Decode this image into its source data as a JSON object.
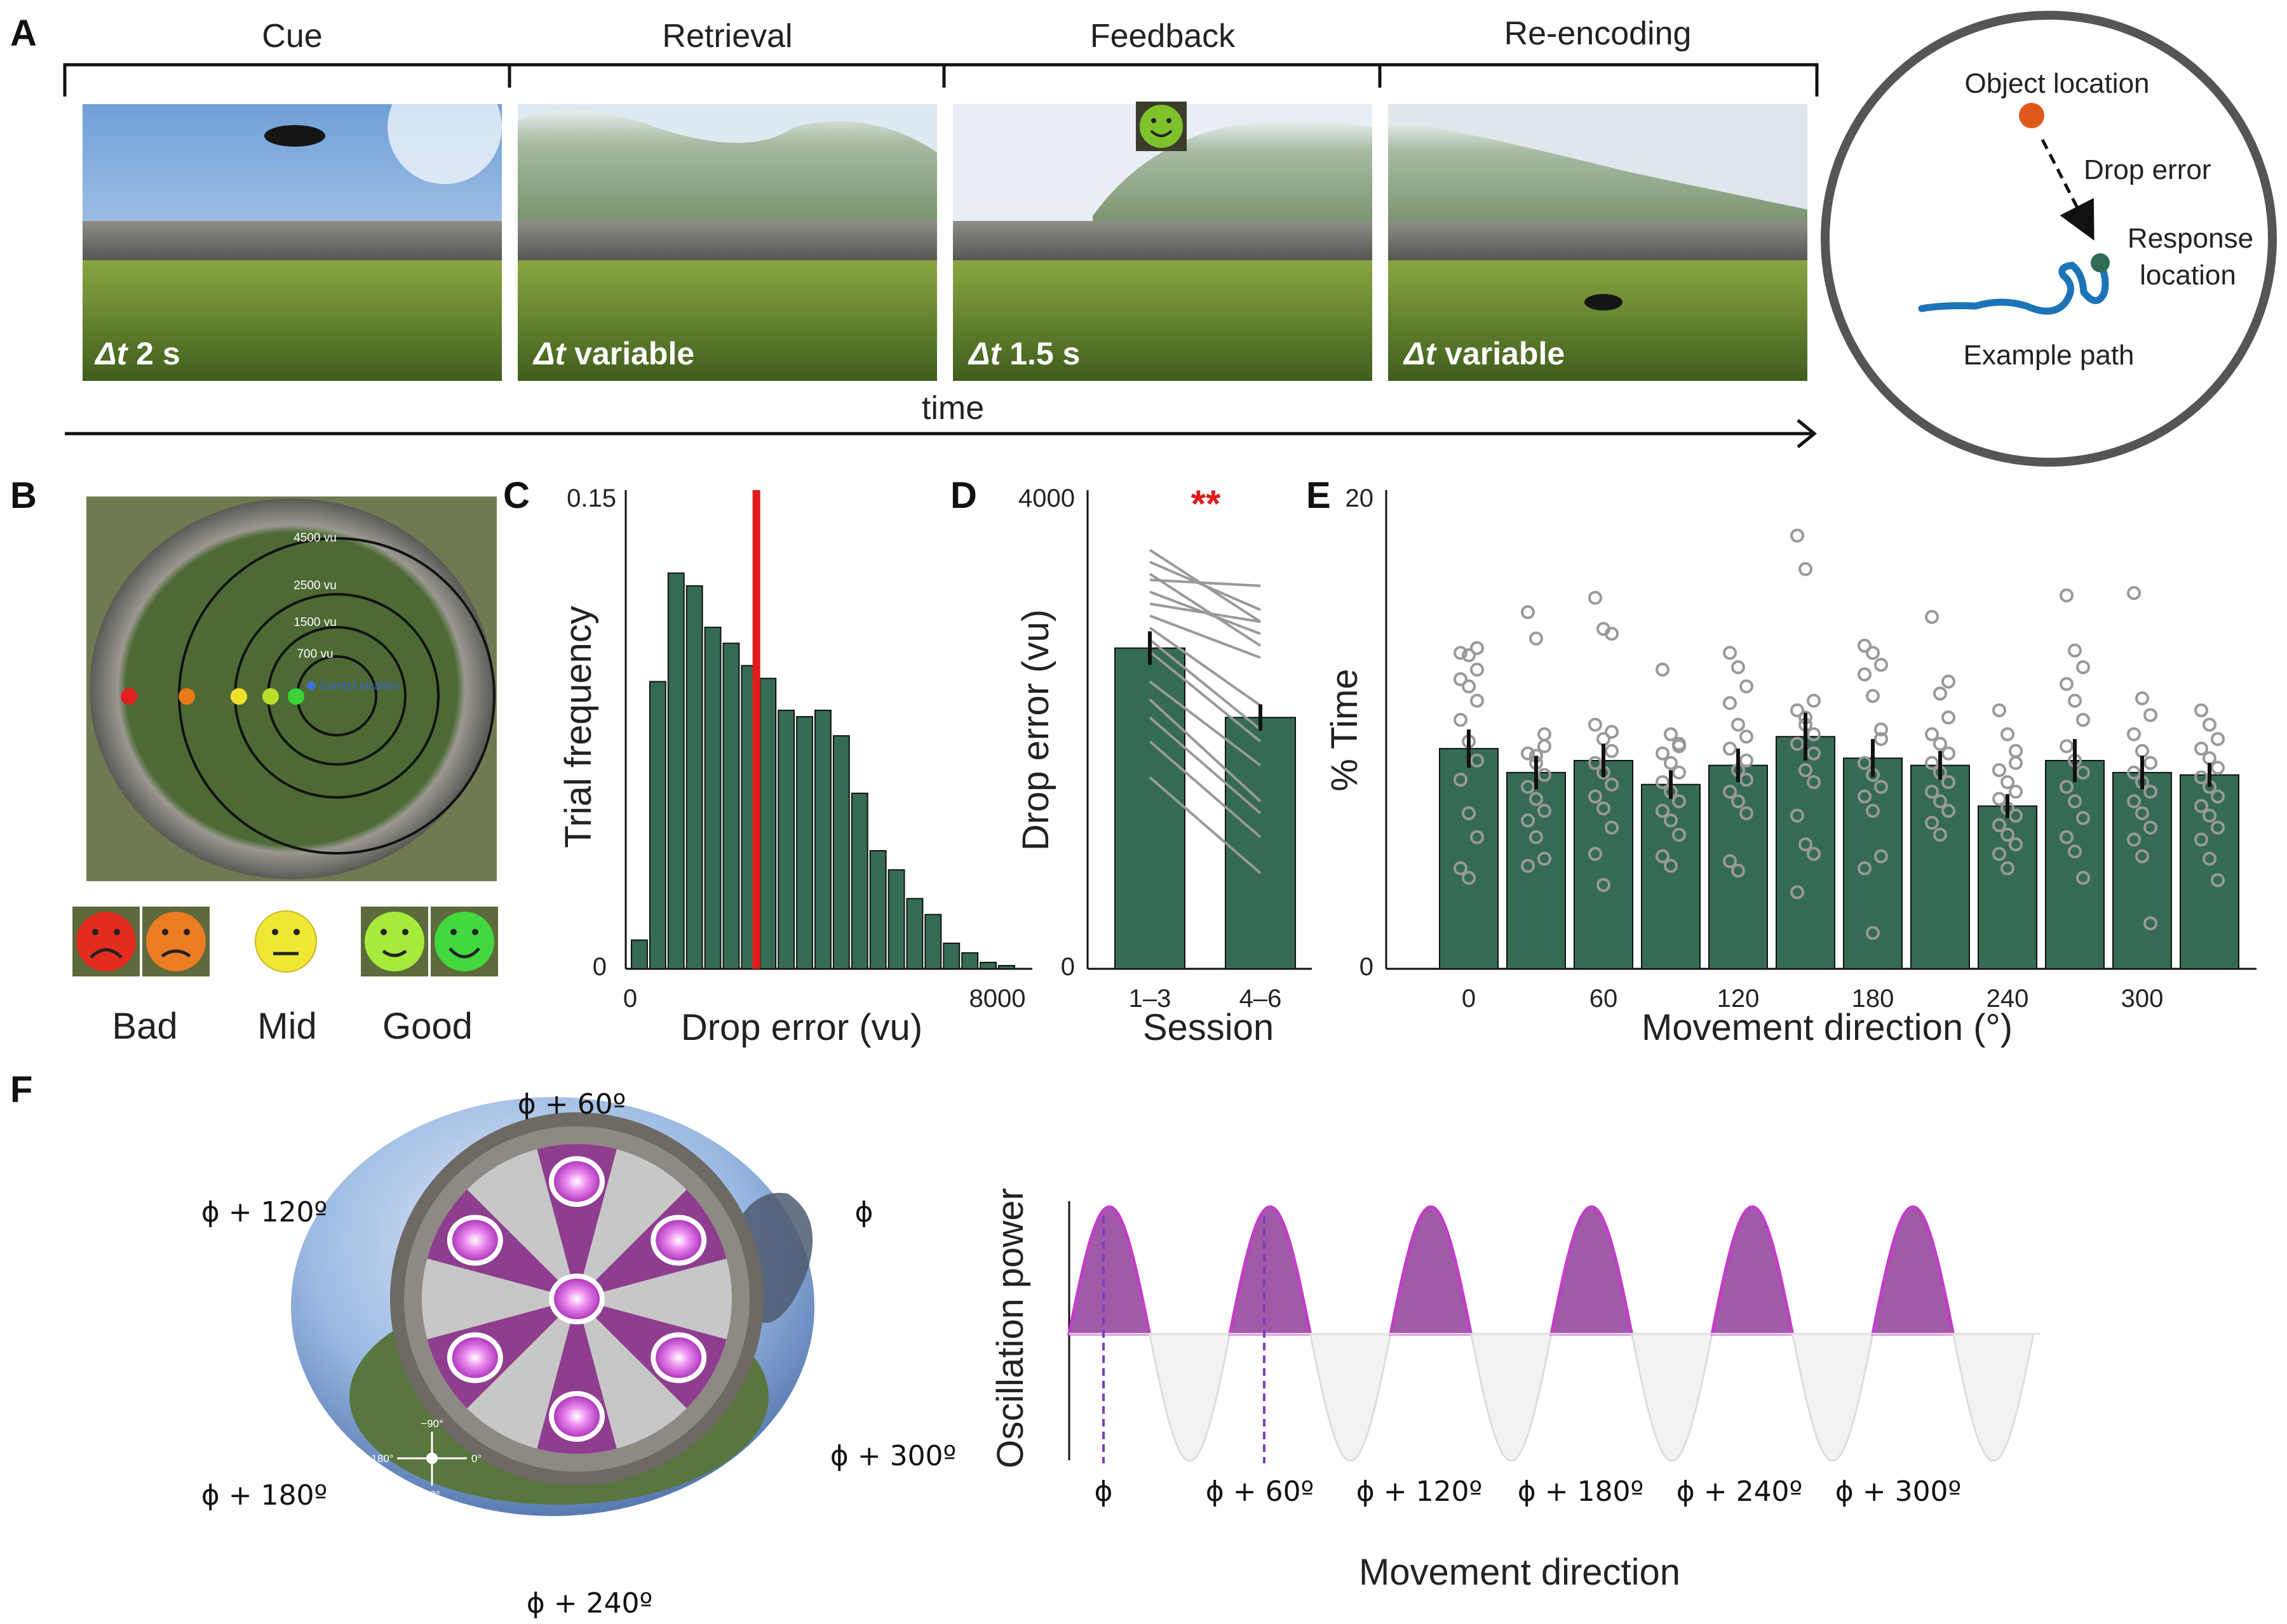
{
  "colors": {
    "bar": "#356b52",
    "red": "#e21a1a",
    "grey": "#999999",
    "purple": "#8e3d8f",
    "magenta": "#c13fc6"
  },
  "panel_labels": {
    "a": "A",
    "b": "B",
    "c": "C",
    "d": "D",
    "e": "E",
    "f": "F"
  },
  "panelA": {
    "phases": [
      "Cue",
      "Retrieval",
      "Feedback",
      "Re-encoding"
    ],
    "overlays": [
      {
        "dt": "Δt",
        "rest": "2 s"
      },
      {
        "dt": "Δt",
        "rest": "variable"
      },
      {
        "dt": "Δt",
        "rest": "1.5 s"
      },
      {
        "dt": "Δt",
        "rest": "variable"
      }
    ],
    "time_label": "time",
    "diagram": {
      "object_location": "Object location",
      "drop_error": "Drop error",
      "response_line1": "Response",
      "response_line2": "location",
      "example_path": "Example path"
    }
  },
  "panelB": {
    "rings": [
      "4500 vu",
      "2500 vu",
      "1500 vu",
      "700 vu"
    ],
    "correct_location": "Correct location",
    "categories": [
      "Bad",
      "Mid",
      "Good"
    ]
  },
  "chart_data": [
    {
      "type": "bar",
      "id": "C",
      "xlabel": "Drop error (vu)",
      "ylabel": "Trial frequency",
      "xlim": [
        0,
        8000
      ],
      "ylim": [
        0,
        0.15
      ],
      "xticks": [
        "0",
        "8000"
      ],
      "yticks": [
        "0",
        "0.15"
      ],
      "bin_width": 400,
      "values": [
        0.009,
        0.09,
        0.124,
        0.12,
        0.107,
        0.102,
        0.095,
        0.091,
        0.081,
        0.079,
        0.081,
        0.073,
        0.055,
        0.037,
        0.031,
        0.022,
        0.017,
        0.008,
        0.005,
        0.002,
        0.001
      ],
      "reference_line": {
        "x": 2750,
        "color": "#e21a1a"
      }
    },
    {
      "type": "bar",
      "id": "D",
      "xlabel": "Session",
      "ylabel": "Drop error (vu)",
      "categories": [
        "1–3",
        "4–6"
      ],
      "values": [
        2680,
        2100
      ],
      "errors": [
        140,
        110
      ],
      "ylim": [
        0,
        4000
      ],
      "yticks": [
        "0",
        "4000"
      ],
      "significance": "**",
      "subjects": [
        [
          3500,
          2900
        ],
        [
          3400,
          3000
        ],
        [
          3300,
          2700
        ],
        [
          3250,
          3200
        ],
        [
          3150,
          2800
        ],
        [
          3050,
          2900
        ],
        [
          2950,
          2600
        ],
        [
          2850,
          2200
        ],
        [
          2750,
          2000
        ],
        [
          2650,
          1900
        ],
        [
          2400,
          1700
        ],
        [
          2250,
          1400
        ],
        [
          2100,
          1300
        ],
        [
          1900,
          1100
        ],
        [
          1600,
          800
        ]
      ]
    },
    {
      "type": "bar",
      "id": "E",
      "xlabel": "Movement direction (°)",
      "ylabel": "% Time",
      "categories": [
        0,
        30,
        60,
        90,
        120,
        150,
        180,
        210,
        240,
        270,
        300,
        330
      ],
      "xticks": [
        "0",
        "60",
        "120",
        "180",
        "240",
        "300"
      ],
      "ylim": [
        0,
        20
      ],
      "yticks": [
        "0",
        "20"
      ],
      "values": [
        9.2,
        8.2,
        8.7,
        7.7,
        8.5,
        9.7,
        8.8,
        8.5,
        6.8,
        8.7,
        8.2,
        8.1
      ],
      "errors": [
        0.8,
        0.7,
        0.7,
        0.6,
        0.7,
        1.0,
        0.8,
        0.6,
        0.5,
        0.9,
        0.7,
        0.5
      ],
      "points": [
        [
          13.2,
          13.1,
          12.5,
          12.1,
          11.8,
          11.2,
          10.4,
          9.5,
          8.7,
          7.9,
          6.5,
          5.5,
          4.2,
          3.8,
          13.4
        ],
        [
          14.9,
          13.8,
          9.3,
          9.0,
          8.6,
          8.1,
          7.6,
          7.1,
          6.6,
          6.2,
          5.5,
          4.6,
          4.3,
          8.9,
          9.8
        ],
        [
          15.5,
          14.2,
          14.0,
          10.2,
          9.6,
          9.1,
          8.6,
          8.2,
          7.7,
          7.2,
          6.7,
          5.9,
          4.8,
          3.5,
          9.9
        ],
        [
          12.5,
          9.8,
          9.4,
          9.0,
          8.6,
          8.2,
          7.8,
          7.4,
          7.0,
          6.6,
          6.2,
          5.6,
          4.7,
          4.3,
          9.3
        ],
        [
          13.2,
          12.6,
          11.8,
          11.1,
          10.2,
          9.7,
          9.2,
          8.3,
          7.9,
          7.4,
          7.0,
          6.5,
          4.5,
          4.1,
          8.7
        ],
        [
          18.1,
          16.7,
          11.2,
          10.8,
          10.2,
          9.8,
          9.4,
          8.3,
          7.8,
          6.4,
          5.2,
          4.8,
          3.2,
          10.5,
          9.0
        ],
        [
          13.5,
          13.2,
          12.7,
          12.3,
          11.4,
          9.6,
          8.6,
          8.1,
          7.6,
          7.2,
          6.6,
          4.7,
          4.2,
          1.5,
          10.0
        ],
        [
          14.7,
          11.5,
          10.5,
          9.8,
          9.4,
          9.0,
          8.6,
          8.2,
          7.8,
          7.4,
          7.0,
          6.6,
          6.1,
          5.6,
          12.0
        ],
        [
          10.8,
          9.8,
          9.1,
          8.3,
          7.8,
          7.4,
          7.1,
          6.7,
          6.4,
          6.0,
          5.6,
          5.2,
          4.8,
          4.2,
          8.6
        ],
        [
          15.6,
          13.3,
          12.6,
          11.9,
          11.2,
          10.4,
          9.3,
          8.7,
          8.2,
          7.6,
          7.0,
          6.3,
          5.5,
          4.9,
          3.8
        ],
        [
          15.7,
          11.3,
          10.6,
          9.8,
          9.1,
          8.6,
          8.2,
          7.8,
          7.4,
          7.0,
          6.5,
          5.9,
          5.4,
          4.7,
          1.9
        ],
        [
          10.8,
          10.2,
          9.6,
          9.2,
          8.8,
          8.4,
          8.0,
          7.6,
          7.2,
          6.8,
          6.4,
          5.9,
          5.4,
          4.6,
          3.7
        ]
      ]
    }
  ],
  "panelF": {
    "directions": [
      "ϕ",
      "ϕ + 60º",
      "ϕ + 120º",
      "ϕ + 180º",
      "ϕ + 240º",
      "ϕ + 300º"
    ],
    "compass": {
      "up": "−90°",
      "left": "180°",
      "right": "0°",
      "down": "90°"
    },
    "ylabel": "Oscillation power",
    "xlabel": "Movement direction"
  }
}
